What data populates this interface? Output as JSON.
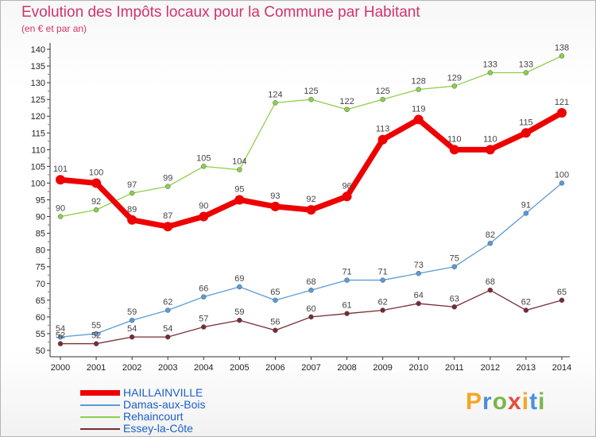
{
  "colors": {
    "title": "#d2336b",
    "legend_text": "#1a5fc7",
    "axis": "#333333",
    "tick_text": "#222222"
  },
  "chart_data": {
    "type": "line",
    "title": "Evolution des Impôts locaux pour la Commune par Habitant",
    "subtitle": "(en € et par an)",
    "xlabel": "",
    "ylabel": "",
    "ylim": [
      50,
      140
    ],
    "yticks": [
      50,
      55,
      60,
      65,
      70,
      75,
      80,
      85,
      90,
      95,
      100,
      105,
      110,
      115,
      120,
      125,
      130,
      135,
      140
    ],
    "categories": [
      "2000",
      "2001",
      "2002",
      "2003",
      "2004",
      "2005",
      "2006",
      "2007",
      "2008",
      "2009",
      "2010",
      "2011",
      "2012",
      "2013",
      "2014"
    ],
    "grid": false,
    "legend_position": "bottom-left",
    "series": [
      {
        "name": "HAILLAINVILLE",
        "color": "#ee0000",
        "emphasis": true,
        "values": [
          101,
          100,
          89,
          87,
          90,
          95,
          93,
          92,
          96,
          113,
          119,
          110,
          110,
          115,
          121
        ]
      },
      {
        "name": "Damas-aux-Bois",
        "color": "#5b9bd5",
        "emphasis": false,
        "values": [
          54,
          55,
          59,
          62,
          66,
          69,
          65,
          68,
          71,
          71,
          73,
          75,
          82,
          91,
          100
        ]
      },
      {
        "name": "Rehaincourt",
        "color": "#8cd04a",
        "emphasis": false,
        "values": [
          90,
          92,
          97,
          99,
          105,
          104,
          124,
          125,
          122,
          125,
          128,
          129,
          133,
          133,
          138
        ]
      },
      {
        "name": "Essey-la-Côte",
        "color": "#7a2a35",
        "emphasis": false,
        "values": [
          52,
          52,
          54,
          54,
          57,
          59,
          56,
          60,
          61,
          62,
          64,
          63,
          68,
          62,
          65
        ]
      }
    ]
  },
  "logo": {
    "letters": [
      {
        "ch": "P",
        "color": "#f5a623"
      },
      {
        "ch": "r",
        "color": "#4a90d9"
      },
      {
        "ch": "o",
        "color": "#7ab648"
      },
      {
        "ch": "x",
        "color": "#e84c3d"
      },
      {
        "ch": "i",
        "color": "#f5a623"
      },
      {
        "ch": "t",
        "color": "#4a90d9"
      },
      {
        "ch": "i",
        "color": "#7ab648"
      }
    ]
  }
}
